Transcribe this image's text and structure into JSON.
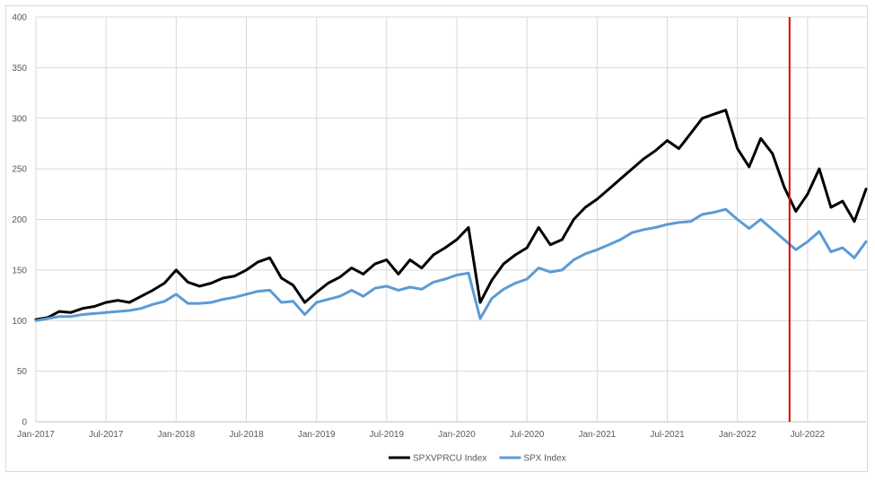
{
  "chart_data": {
    "type": "line",
    "title": "",
    "xlabel": "",
    "ylabel": "",
    "ylim": [
      0,
      400
    ],
    "y_ticks": [
      0,
      50,
      100,
      150,
      200,
      250,
      300,
      350,
      400
    ],
    "x_tick_labels": [
      "Jan-2017",
      "Jul-2017",
      "Jan-2018",
      "Jul-2018",
      "Jan-2019",
      "Jul-2019",
      "Jan-2020",
      "Jul-2020",
      "Jan-2021",
      "Jul-2021",
      "Jan-2022",
      "Jul-2022"
    ],
    "xlim": [
      "2017-01",
      "2022-12"
    ],
    "grid": true,
    "legend_position": "bottom",
    "vline": {
      "x": "2022-05",
      "color": "#e00000"
    },
    "x": [
      "2017-01",
      "2017-02",
      "2017-03",
      "2017-04",
      "2017-05",
      "2017-06",
      "2017-07",
      "2017-08",
      "2017-09",
      "2017-10",
      "2017-11",
      "2017-12",
      "2018-01",
      "2018-02",
      "2018-03",
      "2018-04",
      "2018-05",
      "2018-06",
      "2018-07",
      "2018-08",
      "2018-09",
      "2018-10",
      "2018-11",
      "2018-12",
      "2019-01",
      "2019-02",
      "2019-03",
      "2019-04",
      "2019-05",
      "2019-06",
      "2019-07",
      "2019-08",
      "2019-09",
      "2019-10",
      "2019-11",
      "2019-12",
      "2020-01",
      "2020-02",
      "2020-03",
      "2020-04",
      "2020-05",
      "2020-06",
      "2020-07",
      "2020-08",
      "2020-09",
      "2020-10",
      "2020-11",
      "2020-12",
      "2021-01",
      "2021-02",
      "2021-03",
      "2021-04",
      "2021-05",
      "2021-06",
      "2021-07",
      "2021-08",
      "2021-09",
      "2021-10",
      "2021-11",
      "2021-12",
      "2022-01",
      "2022-02",
      "2022-03",
      "2022-04",
      "2022-05",
      "2022-06",
      "2022-07",
      "2022-08",
      "2022-09",
      "2022-10",
      "2022-11",
      "2022-12"
    ],
    "series": [
      {
        "name": "SPXVPRCU Index",
        "color": "#000000",
        "values": [
          101,
          103,
          109,
          108,
          112,
          114,
          118,
          120,
          118,
          124,
          130,
          137,
          150,
          138,
          134,
          137,
          142,
          144,
          150,
          158,
          162,
          142,
          135,
          118,
          128,
          137,
          143,
          152,
          146,
          156,
          160,
          146,
          160,
          152,
          165,
          172,
          180,
          192,
          118,
          140,
          156,
          165,
          172,
          192,
          175,
          180,
          200,
          212,
          220,
          230,
          240,
          250,
          260,
          268,
          278,
          270,
          285,
          300,
          304,
          308,
          270,
          252,
          280,
          265,
          232,
          208,
          225,
          250,
          212,
          218,
          198,
          230
        ]
      },
      {
        "name": "SPX Index",
        "color": "#5b9bd5",
        "values": [
          100,
          102,
          104,
          104,
          106,
          107,
          108,
          109,
          110,
          112,
          116,
          119,
          126,
          117,
          117,
          118,
          121,
          123,
          126,
          129,
          130,
          118,
          119,
          106,
          118,
          121,
          124,
          130,
          124,
          132,
          134,
          130,
          133,
          131,
          138,
          141,
          145,
          147,
          102,
          122,
          131,
          137,
          141,
          152,
          148,
          150,
          160,
          166,
          170,
          175,
          180,
          187,
          190,
          192,
          195,
          197,
          198,
          205,
          207,
          210,
          200,
          191,
          200,
          190,
          180,
          170,
          178,
          188,
          168,
          172,
          162,
          178
        ]
      }
    ]
  }
}
